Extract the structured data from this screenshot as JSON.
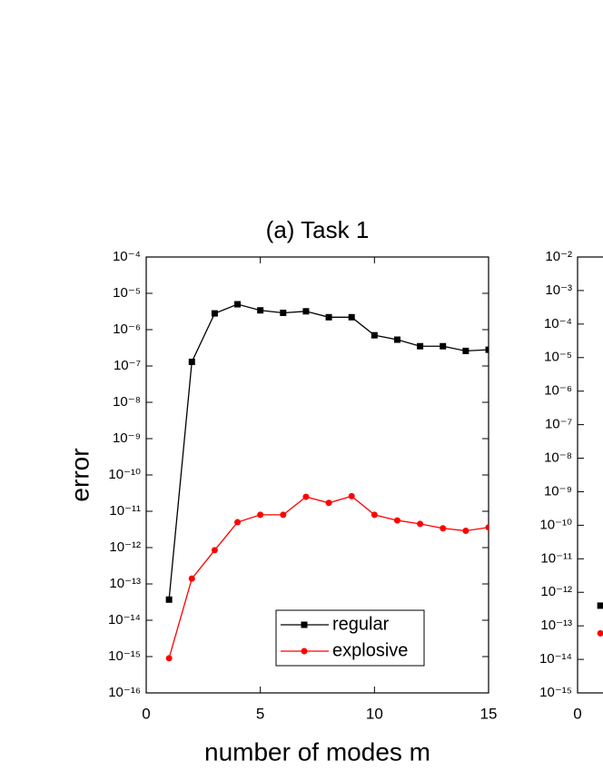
{
  "chart_data": [
    {
      "type": "line",
      "title": "(a) Task 1",
      "x_label": "number of modes m",
      "y_label": "error",
      "log_y": true,
      "xlim": [
        0,
        15
      ],
      "xticks": [
        0,
        5,
        10,
        15
      ],
      "ylim": [
        1e-16,
        0.0001
      ],
      "yticks": [
        {
          "value": 1e-16,
          "label": "10⁻¹⁶"
        },
        {
          "value": 1e-15,
          "label": "10⁻¹⁵"
        },
        {
          "value": 1e-14,
          "label": "10⁻¹⁴"
        },
        {
          "value": 1e-13,
          "label": "10⁻¹³"
        },
        {
          "value": 1e-12,
          "label": "10⁻¹²"
        },
        {
          "value": 1e-11,
          "label": "10⁻¹¹"
        },
        {
          "value": 1e-10,
          "label": "10⁻¹⁰"
        },
        {
          "value": 1e-09,
          "label": "10⁻⁹"
        },
        {
          "value": 1e-08,
          "label": "10⁻⁸"
        },
        {
          "value": 1e-07,
          "label": "10⁻⁷"
        },
        {
          "value": 1e-06,
          "label": "10⁻⁶"
        },
        {
          "value": 1e-05,
          "label": "10⁻⁵"
        },
        {
          "value": 0.0001,
          "label": "10⁻⁴"
        }
      ],
      "legend": "lower right",
      "x": [
        1,
        2,
        3,
        4,
        5,
        6,
        7,
        8,
        9,
        10,
        11,
        12,
        13,
        14,
        15
      ],
      "series": [
        {
          "name": "regular",
          "color": "#000000",
          "marker": "square",
          "values": [
            3.7e-14,
            1.3e-07,
            2.8e-06,
            5e-06,
            3.4e-06,
            2.9e-06,
            3.2e-06,
            2.2e-06,
            2.2e-06,
            7e-07,
            5.3e-07,
            3.5e-07,
            3.5e-07,
            2.6e-07,
            2.8e-07
          ]
        },
        {
          "name": "explosive",
          "color": "#ff0000",
          "marker": "circle",
          "values": [
            9e-16,
            1.4e-13,
            8.5e-13,
            5e-12,
            8e-12,
            8e-12,
            2.5e-11,
            1.7e-11,
            2.6e-11,
            8e-12,
            5.6e-12,
            4.5e-12,
            3.4e-12,
            2.9e-12,
            3.6e-12
          ]
        }
      ]
    },
    {
      "type": "line",
      "log_y": true,
      "xlim": [
        0,
        15
      ],
      "xticks": [
        0
      ],
      "ylim": [
        1e-15,
        0.01
      ],
      "yticks": [
        {
          "value": 1e-15,
          "label": "10⁻¹⁵"
        },
        {
          "value": 1e-14,
          "label": "10⁻¹⁴"
        },
        {
          "value": 1e-13,
          "label": "10⁻¹³"
        },
        {
          "value": 1e-12,
          "label": "10⁻¹²"
        },
        {
          "value": 1e-11,
          "label": "10⁻¹¹"
        },
        {
          "value": 1e-10,
          "label": "10⁻¹⁰"
        },
        {
          "value": 1e-09,
          "label": "10⁻⁹"
        },
        {
          "value": 1e-08,
          "label": "10⁻⁸"
        },
        {
          "value": 1e-07,
          "label": "10⁻⁷"
        },
        {
          "value": 1e-06,
          "label": "10⁻⁶"
        },
        {
          "value": 1e-05,
          "label": "10⁻⁵"
        },
        {
          "value": 0.0001,
          "label": "10⁻⁴"
        },
        {
          "value": 0.001,
          "label": "10⁻³"
        },
        {
          "value": 0.01,
          "label": "10⁻²"
        }
      ],
      "x": [
        1
      ],
      "series": [
        {
          "color": "#000000",
          "marker": "square",
          "values": [
            4e-13
          ]
        },
        {
          "color": "#ff0000",
          "marker": "circle",
          "values": [
            6e-14
          ]
        }
      ]
    }
  ]
}
